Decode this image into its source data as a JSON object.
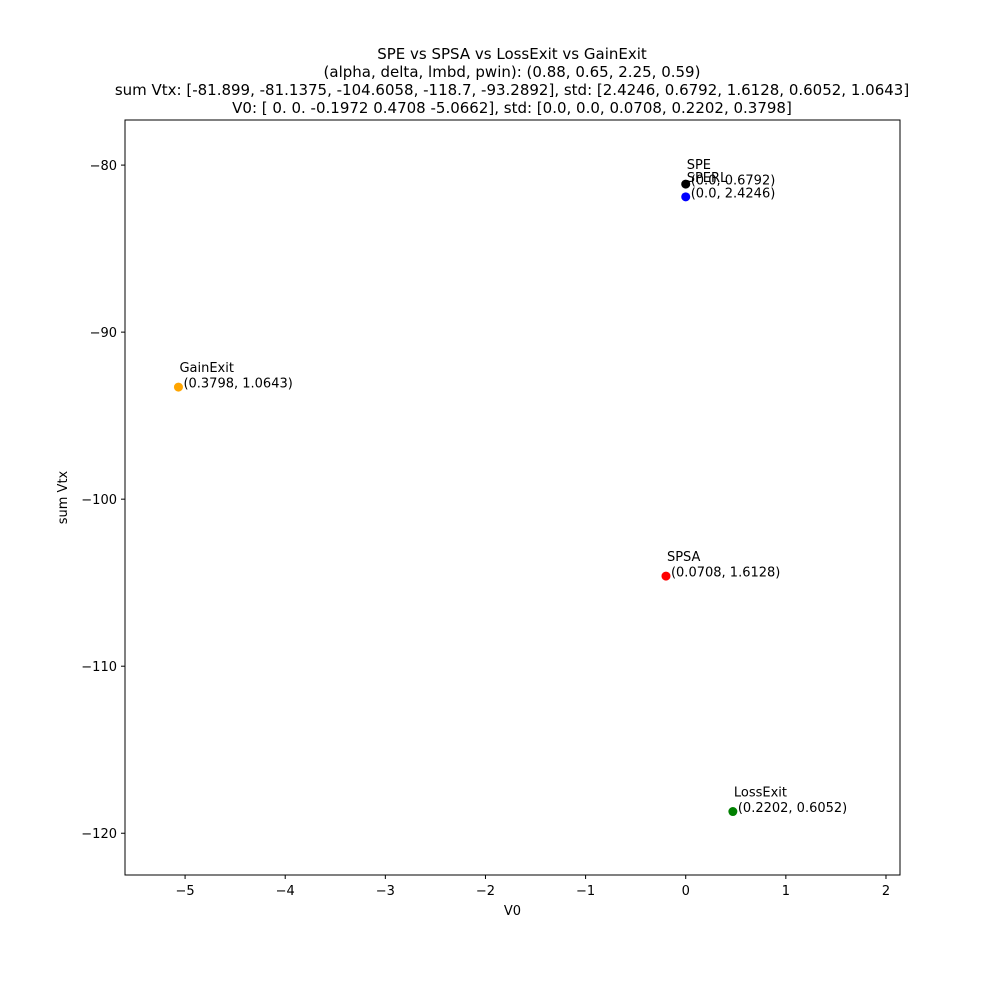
{
  "chart_data": {
    "type": "scatter",
    "title_lines": [
      "SPE vs SPSA vs LossExit vs GainExit",
      "(alpha, delta, lmbd, pwin): (0.88, 0.65, 2.25, 0.59)",
      "sum Vtx: [-81.899, -81.1375, -104.6058, -118.7, -93.2892], std: [2.4246, 0.6792, 1.6128, 0.6052, 1.0643]",
      "V0: [ 0.      0.     -0.1972  0.4708 -5.0662], std: [0.0, 0.0, 0.0708, 0.2202, 0.3798]"
    ],
    "xlabel": "V0",
    "ylabel": "sum Vtx",
    "xlim": [
      -5.6,
      2.14
    ],
    "ylim": [
      -122.5,
      -77.3
    ],
    "xticks": [
      -5,
      -4,
      -3,
      -2,
      -1,
      0,
      1,
      2
    ],
    "xtick_labels": [
      "−5",
      "−4",
      "−3",
      "−2",
      "−1",
      "0",
      "1",
      "2"
    ],
    "yticks": [
      -80,
      -90,
      -100,
      -110,
      -120
    ],
    "ytick_labels": [
      "−80",
      "−90",
      "−100",
      "−110",
      "−120"
    ],
    "grid": false,
    "series": [
      {
        "name": "SPE",
        "x": 0.0,
        "y": -81.1375,
        "color": "#000000",
        "annotation": "(0.0, 0.6792)"
      },
      {
        "name": "SPERL",
        "x": 0.0,
        "y": -81.899,
        "color": "#0000ff",
        "annotation": "(0.0, 2.4246)"
      },
      {
        "name": "SPSA",
        "x": -0.1972,
        "y": -104.6058,
        "color": "#ff0000",
        "annotation": "(0.0708, 1.6128)"
      },
      {
        "name": "LossExit",
        "x": 0.4708,
        "y": -118.7,
        "color": "#008000",
        "annotation": "(0.2202, 0.6052)"
      },
      {
        "name": "GainExit",
        "x": -5.0662,
        "y": -93.2892,
        "color": "#ffa500",
        "annotation": "(0.3798, 1.0643)"
      }
    ]
  }
}
